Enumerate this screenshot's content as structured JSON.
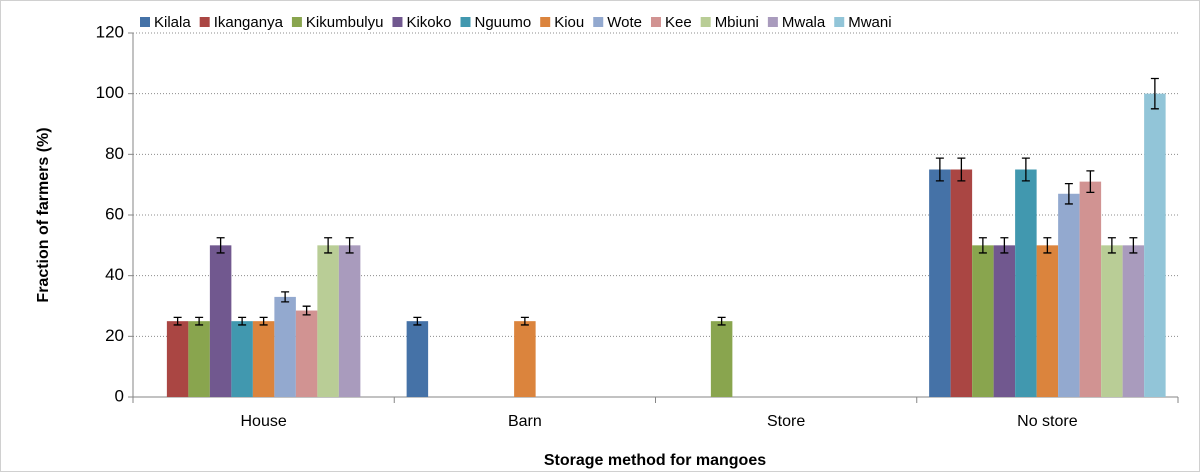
{
  "chart_data": {
    "type": "bar",
    "x_label": "Storage method for mangoes",
    "y_label": "Fraction of farmers (%)",
    "categories": [
      "House",
      "Barn",
      "Store",
      "No store"
    ],
    "ylim": [
      0,
      120
    ],
    "yticks": [
      0,
      20,
      40,
      60,
      80,
      100,
      120
    ],
    "grid": true,
    "legend": "top",
    "series": [
      {
        "name": "Kilala",
        "color": "#4572a7",
        "values": [
          null,
          25,
          null,
          75
        ],
        "errors": [
          null,
          1.25,
          null,
          3.75
        ]
      },
      {
        "name": "Ikanganya",
        "color": "#aa4643",
        "values": [
          25,
          null,
          null,
          75
        ],
        "errors": [
          1.25,
          null,
          null,
          3.75
        ]
      },
      {
        "name": "Kikumbulyu",
        "color": "#89a54e",
        "values": [
          25,
          null,
          25,
          50
        ],
        "errors": [
          1.25,
          null,
          1.25,
          2.5
        ]
      },
      {
        "name": "Kikoko",
        "color": "#71588f",
        "values": [
          50,
          null,
          null,
          50
        ],
        "errors": [
          2.5,
          null,
          null,
          2.5
        ]
      },
      {
        "name": "Nguumo",
        "color": "#4198af",
        "values": [
          25,
          null,
          null,
          75
        ],
        "errors": [
          1.25,
          null,
          null,
          3.75
        ]
      },
      {
        "name": "Kiou",
        "color": "#db843d",
        "values": [
          25,
          25,
          null,
          50
        ],
        "errors": [
          1.25,
          1.25,
          null,
          2.5
        ]
      },
      {
        "name": "Wote",
        "color": "#93a9cf",
        "values": [
          33,
          null,
          null,
          67
        ],
        "errors": [
          1.65,
          null,
          null,
          3.35
        ]
      },
      {
        "name": "Kee",
        "color": "#d19392",
        "values": [
          28.5,
          null,
          null,
          71
        ],
        "errors": [
          1.43,
          null,
          null,
          3.55
        ]
      },
      {
        "name": "Mbiuni",
        "color": "#b9cd96",
        "values": [
          50,
          null,
          null,
          50
        ],
        "errors": [
          2.5,
          null,
          null,
          2.5
        ]
      },
      {
        "name": "Mwala",
        "color": "#a99bbd",
        "values": [
          50,
          null,
          null,
          50
        ],
        "errors": [
          2.5,
          null,
          null,
          2.5
        ]
      },
      {
        "name": "Mwani",
        "color": "#92c5d8",
        "values": [
          null,
          null,
          null,
          100
        ],
        "errors": [
          null,
          null,
          null,
          5
        ]
      }
    ]
  }
}
